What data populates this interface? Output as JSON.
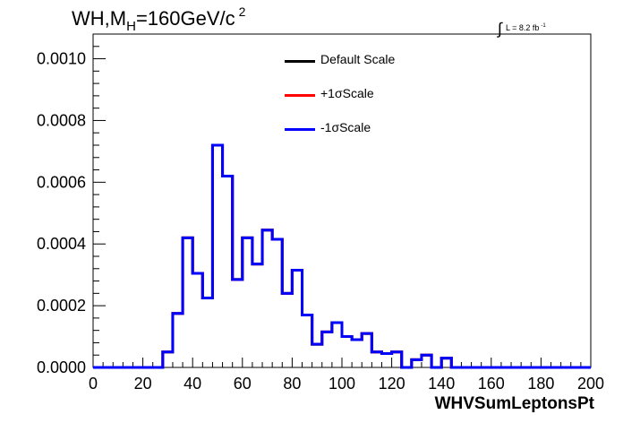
{
  "title": {
    "main": "WH,M",
    "sub": "H",
    "rest": "=160GeV/c",
    "sup": "2"
  },
  "luminosity": {
    "integral": "∫",
    "text": "L = 8.2 fb",
    "sup": "-1"
  },
  "legend": [
    {
      "label": "Default Scale",
      "color": "#000000"
    },
    {
      "label": "+1σScale",
      "color": "#ff0000"
    },
    {
      "label": "-1σScale",
      "color": "#0000ff"
    }
  ],
  "chart_data": {
    "type": "step-histogram",
    "xlabel": "WHVSumLeptonsPt",
    "ylabel": "",
    "xlim": [
      0,
      200
    ],
    "ylim": [
      0,
      0.00108
    ],
    "xticks": [
      0,
      20,
      40,
      60,
      80,
      100,
      120,
      140,
      160,
      180,
      200
    ],
    "xtick_labels": [
      "0",
      "20",
      "40",
      "60",
      "80",
      "100",
      "120",
      "140",
      "160",
      "180",
      "200"
    ],
    "yticks": [
      0,
      0.0002,
      0.0004,
      0.0006,
      0.0008,
      0.001
    ],
    "ytick_labels": [
      "0.0000",
      "0.0002",
      "0.0004",
      "0.0006",
      "0.0008",
      "0.0010"
    ],
    "bin_width": 4,
    "bin_edges_start": 0,
    "series": [
      {
        "name": "Default Scale",
        "color": "#000000",
        "values": [
          0,
          0,
          0,
          0,
          0,
          0,
          0,
          5e-05,
          0.000175,
          0.00042,
          0.000305,
          0.000225,
          0.00072,
          0.00062,
          0.000285,
          0.00042,
          0.000335,
          0.000445,
          0.000415,
          0.00024,
          0.000315,
          0.00017,
          7.5e-05,
          0.000115,
          0.000145,
          0.0001,
          9e-05,
          0.00011,
          5e-05,
          4.5e-05,
          5e-05,
          0,
          2.5e-05,
          4e-05,
          0,
          3e-05,
          0,
          0,
          0,
          0,
          0,
          0,
          0,
          0,
          0,
          0,
          0,
          0,
          0,
          0
        ]
      },
      {
        "name": "+1σScale",
        "color": "#ff0000",
        "values": [
          0,
          0,
          0,
          0,
          0,
          0,
          0,
          5e-05,
          0.000175,
          0.00042,
          0.000305,
          0.000225,
          0.00072,
          0.00062,
          0.000285,
          0.00042,
          0.000335,
          0.000445,
          0.000415,
          0.00024,
          0.000315,
          0.00017,
          7.5e-05,
          0.000115,
          0.000145,
          0.0001,
          9e-05,
          0.00011,
          5e-05,
          4.5e-05,
          5e-05,
          0,
          2.5e-05,
          4e-05,
          0,
          3e-05,
          0,
          0,
          0,
          0,
          0,
          0,
          0,
          0,
          0,
          0,
          0,
          0,
          0,
          0
        ]
      },
      {
        "name": "-1σScale",
        "color": "#0000ff",
        "values": [
          0,
          0,
          0,
          0,
          0,
          0,
          0,
          5e-05,
          0.000175,
          0.00042,
          0.000305,
          0.000225,
          0.00072,
          0.00062,
          0.000285,
          0.00042,
          0.000335,
          0.000445,
          0.000415,
          0.00024,
          0.000315,
          0.00017,
          7.5e-05,
          0.000115,
          0.000145,
          0.0001,
          9e-05,
          0.00011,
          5e-05,
          4.5e-05,
          5e-05,
          0,
          2.5e-05,
          4e-05,
          0,
          3e-05,
          0,
          0,
          0,
          0,
          0,
          0,
          0,
          0,
          0,
          0,
          0,
          0,
          0,
          0
        ]
      }
    ]
  }
}
